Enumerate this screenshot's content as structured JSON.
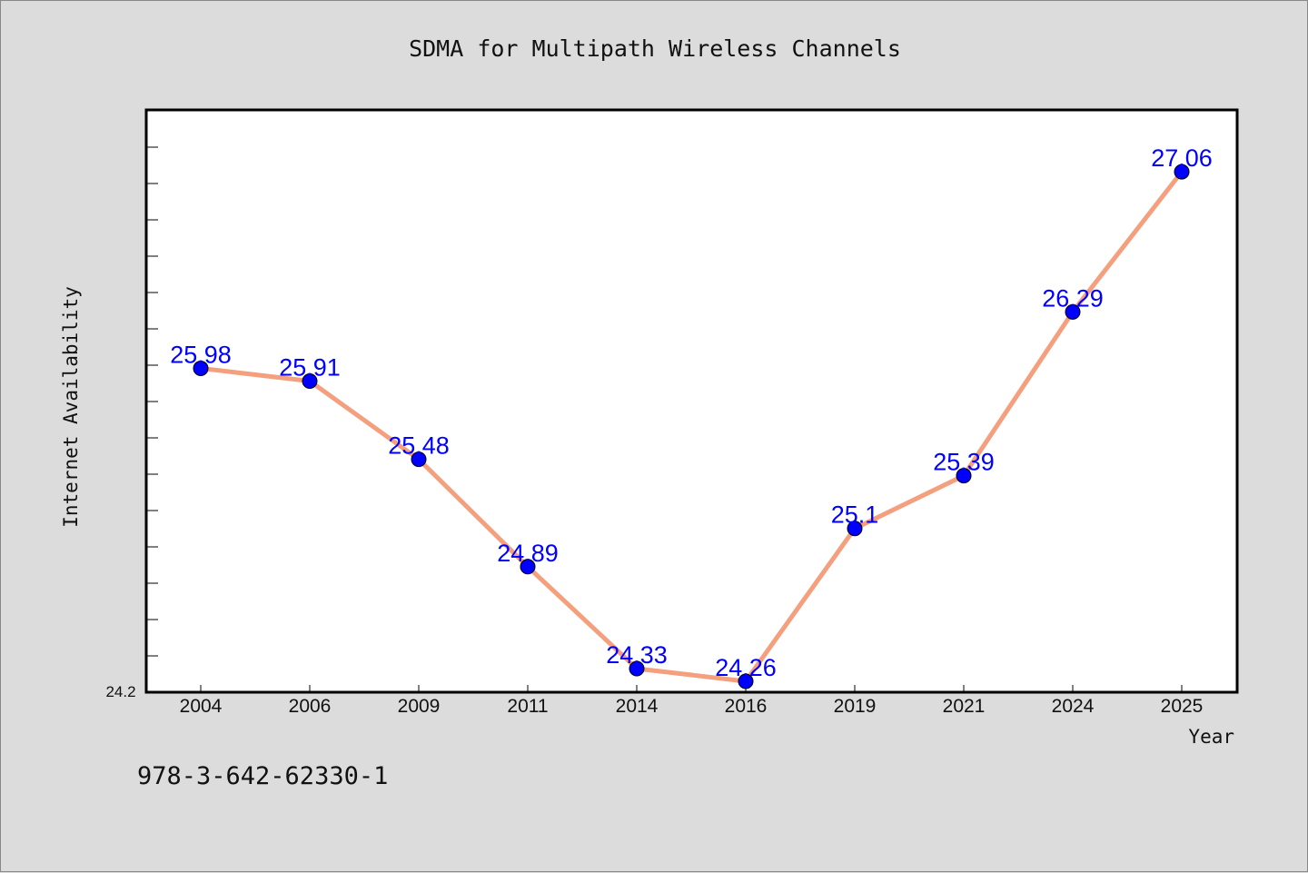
{
  "chart_data": {
    "type": "line",
    "title": "SDMA for Multipath Wireless Channels",
    "xlabel": "Year",
    "ylabel": "Internet Availability",
    "categories": [
      "2004",
      "2006",
      "2009",
      "2011",
      "2014",
      "2016",
      "2019",
      "2021",
      "2024",
      "2025"
    ],
    "series": [
      {
        "values": [
          25.98,
          25.91,
          25.48,
          24.89,
          24.33,
          24.26,
          25.1,
          25.39,
          26.29,
          27.06
        ],
        "labels": [
          "25.98",
          "25.91",
          "25.48",
          "24.89",
          "24.33",
          "24.26",
          "25.1",
          "25.39",
          "26.29",
          "27.06"
        ]
      }
    ],
    "ylim": [
      24.2,
      27.4
    ],
    "y_tick_labels": [
      "24.2"
    ],
    "grid": false,
    "legend": "none",
    "colors": {
      "line": "#f4a07e",
      "marker": "#0000ff",
      "data_label": "#0000ff",
      "background": "#dcdcdc",
      "plot_area": "#ffffff"
    }
  },
  "footer": {
    "identifier": "978-3-642-62330-1"
  }
}
